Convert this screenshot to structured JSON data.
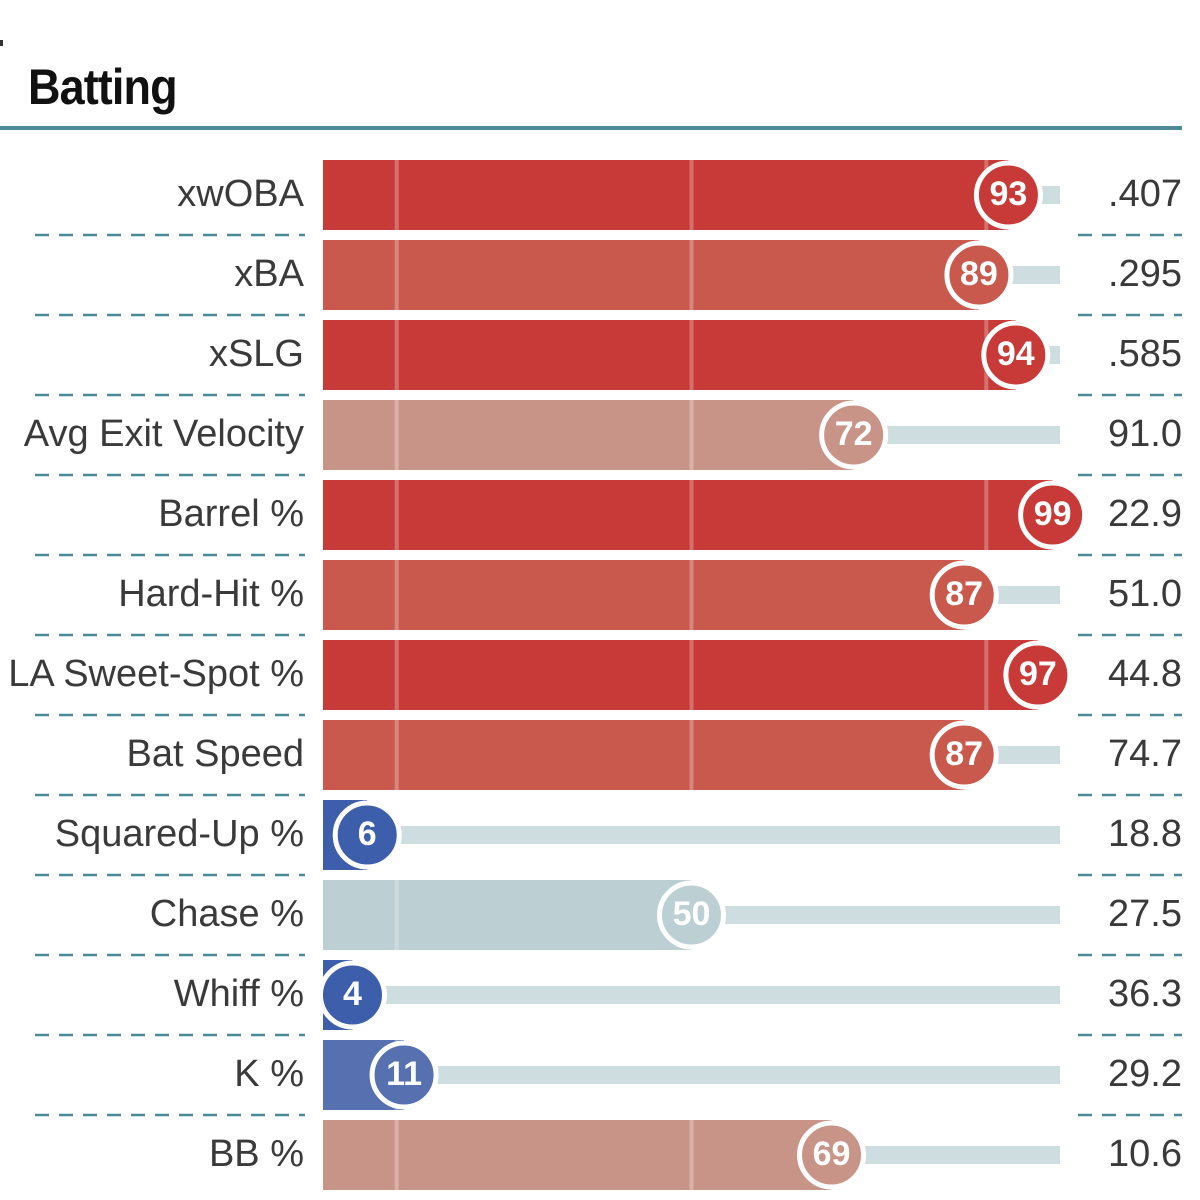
{
  "title": "Batting",
  "chart_data": {
    "type": "bar",
    "orientation": "horizontal",
    "title": "Batting",
    "xlim": [
      0,
      100
    ],
    "grid": true,
    "categories": [
      "xwOBA",
      "xBA",
      "xSLG",
      "Avg Exit Velocity",
      "Barrel %",
      "Hard-Hit %",
      "LA Sweet-Spot %",
      "Bat Speed",
      "Squared-Up %",
      "Chase %",
      "Whiff %",
      "K %",
      "BB %"
    ],
    "values": [
      93,
      89,
      94,
      72,
      99,
      87,
      97,
      87,
      6,
      50,
      4,
      11,
      69
    ],
    "stat_values": [
      ".407",
      ".295",
      ".585",
      "91.0",
      "22.9",
      "51.0",
      "44.8",
      "74.7",
      "18.8",
      "27.5",
      "36.3",
      "29.2",
      "10.6"
    ],
    "colors": {
      "very_high": "#c73a37",
      "high": "#c9584d",
      "above_avg": "#c99488",
      "average": "#bccfd2",
      "low": "#5670b0",
      "very_low": "#3d5eaa",
      "track": "#cedddf",
      "separator": "#4b8a94"
    }
  }
}
